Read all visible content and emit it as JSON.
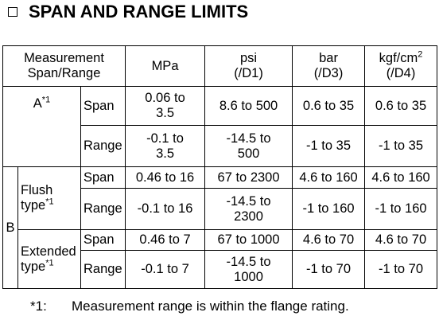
{
  "title": "SPAN AND RANGE LIMITS",
  "table": {
    "header": {
      "span_range": "Measurement\nSpan/Range",
      "columns": [
        {
          "unit": "MPa"
        },
        {
          "unit": "psi",
          "code": "(/D1)"
        },
        {
          "unit": "bar",
          "code": "(/D3)"
        },
        {
          "unit": "kgf/cm",
          "unit_sup": "2",
          "code": "(/D4)"
        }
      ]
    },
    "groups": [
      {
        "label": "A",
        "label_sup": "*1",
        "rows": [
          {
            "kind": "Span",
            "values": [
              "0.06 to\n3.5",
              "8.6 to 500",
              "0.6 to 35",
              "0.6 to 35"
            ]
          },
          {
            "kind": "Range",
            "values": [
              "-0.1 to\n3.5",
              "-14.5 to\n500",
              "-1 to 35",
              "-1 to 35"
            ]
          }
        ]
      },
      {
        "label": "B",
        "subgroups": [
          {
            "label": "Flush\ntype",
            "label_sup": "*1",
            "rows": [
              {
                "kind": "Span",
                "values": [
                  "0.46 to 16",
                  "67 to 2300",
                  "4.6 to 160",
                  "4.6 to 160"
                ]
              },
              {
                "kind": "Range",
                "values": [
                  "-0.1 to 16",
                  "-14.5 to\n2300",
                  "-1 to 160",
                  "-1 to 160"
                ]
              }
            ]
          },
          {
            "label": "Extended\ntype",
            "label_sup": "*1",
            "rows": [
              {
                "kind": "Span",
                "values": [
                  "0.46 to 7",
                  "67 to 1000",
                  "4.6 to 70",
                  "4.6 to 70"
                ]
              },
              {
                "kind": "Range",
                "values": [
                  "-0.1 to 7",
                  "-14.5 to\n1000",
                  "-1 to 70",
                  "-1 to 70"
                ]
              }
            ]
          }
        ]
      }
    ]
  },
  "footnote": {
    "mark": "*1:",
    "text": "Measurement range is within the flange rating."
  }
}
